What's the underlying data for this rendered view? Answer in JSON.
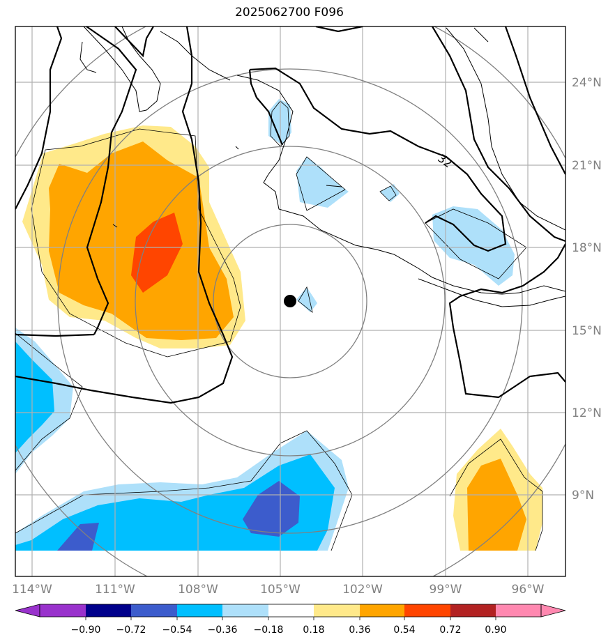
{
  "title": "2025062700 F096",
  "map": {
    "lon_ticks": [
      "114°W",
      "111°W",
      "108°W",
      "105°W",
      "102°W",
      "99°W",
      "96°W"
    ],
    "lat_ticks": [
      "24°N",
      "21°N",
      "18°N",
      "15°N",
      "12°N",
      "9°N"
    ],
    "contour_label": "32",
    "storm_center": {
      "lon": -104.6,
      "lat": 16.0
    },
    "colors": {
      "light_blue": "#aee0fa",
      "blue": "#00bfff",
      "dark_blue": "#3c5ccc",
      "light_yellow": "#ffe98a",
      "orange": "#ffa500",
      "red_orange": "#ff4500",
      "coastline": "#000000",
      "grid": "#b0b0b0",
      "range_rings": "#808080"
    }
  },
  "colorbar": {
    "labels": [
      "−0.90",
      "−0.72",
      "−0.54",
      "−0.36",
      "−0.18",
      "0.18",
      "0.36",
      "0.54",
      "0.72",
      "0.90"
    ],
    "colors": [
      "#9932cc",
      "#00008b",
      "#3c5ccc",
      "#00bfff",
      "#aee0fa",
      "#ffffff",
      "#ffe98a",
      "#ffa500",
      "#ff4500",
      "#b22222",
      "#ff88b0",
      "#ff69b4"
    ]
  }
}
